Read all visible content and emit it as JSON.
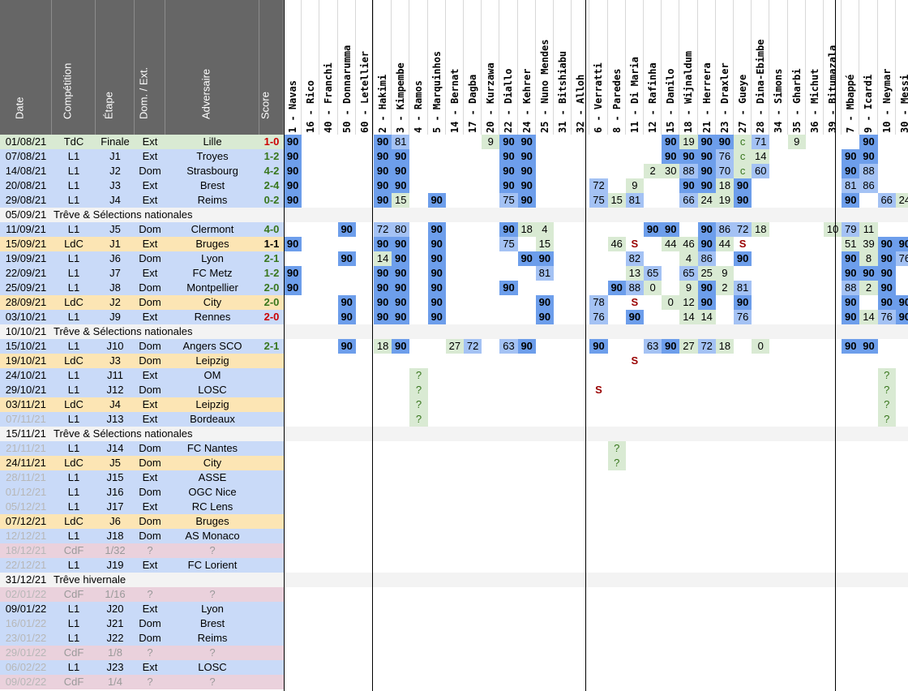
{
  "headers": [
    "Date",
    "Compétition",
    "Étape",
    "Dom. / Ext.",
    "Adversaire",
    "Score"
  ],
  "players": [
    "1 - Navas",
    "16 - Rico",
    "40 - Franchi",
    "50 - Donnarumma",
    "60 - Letellier",
    "2 - Hakimi",
    "3 - Kimpembe",
    "4 - Ramos",
    "5 - Marquinhos",
    "14 - Bernat",
    "17 - Dagba",
    "20 - Kurzawa",
    "22 - Diallo",
    "24 - Kehrer",
    "25 - Nuno Mendes",
    "31 - Bitshiabu",
    "32 - Alloh",
    "6 - Verratti",
    "8 - Paredes",
    "11 - Di Maria",
    "12 - Rafinha",
    "15 - Danilo",
    "18 - Wijnaldum",
    "21 - Herrera",
    "23 - Draxler",
    "27 - Gueye",
    "28 - Dina-Ebimbe",
    "34 - Simons",
    "35 - Gharbi",
    "36 - Michut",
    "39 - Bitumazala",
    "7 - Mbappé",
    "9 - Icardi",
    "10 - Neymar",
    "30 - Messi"
  ],
  "matches": [
    {
      "date": "01/08/21",
      "comp": "TdC",
      "stage": "Finale",
      "venue": "Ext",
      "opp": "Lille",
      "score": "1-0",
      "res": "L",
      "cells": [
        "90",
        "",
        "",
        "",
        "",
        "90",
        "81",
        "",
        "",
        "",
        "",
        "9",
        "90",
        "90",
        "",
        "",
        "",
        "",
        "",
        "",
        "",
        "90",
        "19",
        "90",
        "90",
        "c",
        "71",
        "",
        "9",
        "",
        "",
        "",
        "90",
        "",
        ""
      ]
    },
    {
      "date": "07/08/21",
      "comp": "L1",
      "stage": "J1",
      "venue": "Ext",
      "opp": "Troyes",
      "score": "1-2",
      "res": "W",
      "cells": [
        "90",
        "",
        "",
        "",
        "",
        "90",
        "90",
        "",
        "",
        "",
        "",
        "",
        "90",
        "90",
        "",
        "",
        "",
        "",
        "",
        "",
        "",
        "90",
        "90",
        "90",
        "76",
        "c",
        "14",
        "",
        "",
        "",
        "",
        "90",
        "90",
        "",
        ""
      ]
    },
    {
      "date": "14/08/21",
      "comp": "L1",
      "stage": "J2",
      "venue": "Dom",
      "opp": "Strasbourg",
      "score": "4-2",
      "res": "W",
      "cells": [
        "90",
        "",
        "",
        "",
        "",
        "90",
        "90",
        "",
        "",
        "",
        "",
        "",
        "90",
        "90",
        "",
        "",
        "",
        "",
        "",
        "",
        "2",
        "30",
        "88",
        "90",
        "70",
        "c",
        "60",
        "",
        "",
        "",
        "",
        "90",
        "88",
        "",
        ""
      ]
    },
    {
      "date": "20/08/21",
      "comp": "L1",
      "stage": "J3",
      "venue": "Ext",
      "opp": "Brest",
      "score": "2-4",
      "res": "W",
      "cells": [
        "90",
        "",
        "",
        "",
        "",
        "90",
        "90",
        "",
        "",
        "",
        "",
        "",
        "90",
        "90",
        "",
        "",
        "",
        "72",
        "",
        "9",
        "",
        "",
        "90",
        "90",
        "18",
        "90",
        "",
        "",
        "",
        "",
        "",
        "81",
        "86",
        "",
        ""
      ]
    },
    {
      "date": "29/08/21",
      "comp": "L1",
      "stage": "J4",
      "venue": "Ext",
      "opp": "Reims",
      "score": "0-2",
      "res": "W",
      "cells": [
        "90",
        "",
        "",
        "",
        "",
        "90",
        "15",
        "",
        "90",
        "",
        "",
        "",
        "75",
        "90",
        "",
        "",
        "",
        "75",
        "15",
        "81",
        "",
        "",
        "66",
        "24",
        "19",
        "90",
        "",
        "",
        "",
        "",
        "",
        "90",
        "",
        "66",
        "24"
      ]
    },
    {
      "date": "05/09/21",
      "break": "Trêve & Sélections nationales"
    },
    {
      "date": "11/09/21",
      "comp": "L1",
      "stage": "J5",
      "venue": "Dom",
      "opp": "Clermont",
      "score": "4-0",
      "res": "W",
      "cells": [
        "",
        "",
        "",
        "90",
        "",
        "72",
        "80",
        "",
        "90",
        "",
        "",
        "",
        "90",
        "18",
        "4",
        "",
        "",
        "",
        "",
        "",
        "90",
        "90",
        "",
        "90",
        "86",
        "72",
        "18",
        "",
        "",
        "",
        "10",
        "79",
        "11",
        "",
        ""
      ]
    },
    {
      "date": "15/09/21",
      "comp": "LdC",
      "stage": "J1",
      "venue": "Ext",
      "opp": "Bruges",
      "score": "1-1",
      "res": "D",
      "cells": [
        "90",
        "",
        "",
        "",
        "",
        "90",
        "90",
        "",
        "90",
        "",
        "",
        "",
        "75",
        "",
        "15",
        "",
        "",
        "",
        "46",
        "S",
        "",
        "44",
        "46",
        "90",
        "44",
        "S",
        "",
        "",
        "",
        "",
        "",
        "51",
        "39",
        "90",
        "90"
      ]
    },
    {
      "date": "19/09/21",
      "comp": "L1",
      "stage": "J6",
      "venue": "Dom",
      "opp": "Lyon",
      "score": "2-1",
      "res": "W",
      "cells": [
        "",
        "",
        "",
        "90",
        "",
        "14",
        "90",
        "",
        "90",
        "",
        "",
        "",
        "",
        "90",
        "90",
        "",
        "",
        "",
        "",
        "82",
        "",
        "",
        "4",
        "86",
        "",
        "90",
        "",
        "",
        "",
        "",
        "",
        "90",
        "8",
        "90",
        "76"
      ]
    },
    {
      "date": "22/09/21",
      "comp": "L1",
      "stage": "J7",
      "venue": "Ext",
      "opp": "FC Metz",
      "score": "1-2",
      "res": "W",
      "cells": [
        "90",
        "",
        "",
        "",
        "",
        "90",
        "90",
        "",
        "90",
        "",
        "",
        "",
        "",
        "",
        "81",
        "",
        "",
        "",
        "",
        "13",
        "65",
        "",
        "65",
        "25",
        "9",
        "",
        "",
        "",
        "",
        "",
        "",
        "90",
        "90",
        "90",
        ""
      ]
    },
    {
      "date": "25/09/21",
      "comp": "L1",
      "stage": "J8",
      "venue": "Dom",
      "opp": "Montpellier",
      "score": "2-0",
      "res": "W",
      "cells": [
        "90",
        "",
        "",
        "",
        "",
        "90",
        "90",
        "",
        "90",
        "",
        "",
        "",
        "90",
        "",
        "",
        "",
        "",
        "",
        "90",
        "88",
        "0",
        "",
        "9",
        "90",
        "2",
        "81",
        "",
        "",
        "",
        "",
        "",
        "88",
        "2",
        "90",
        ""
      ]
    },
    {
      "date": "28/09/21",
      "comp": "LdC",
      "stage": "J2",
      "venue": "Dom",
      "opp": "City",
      "score": "2-0",
      "res": "W",
      "cells": [
        "",
        "",
        "",
        "90",
        "",
        "90",
        "90",
        "",
        "90",
        "",
        "",
        "",
        "",
        "",
        "90",
        "",
        "",
        "78",
        "",
        "S",
        "",
        "0",
        "12",
        "90",
        "",
        "90",
        "",
        "",
        "",
        "",
        "",
        "90",
        "",
        "90",
        "90"
      ]
    },
    {
      "date": "03/10/21",
      "comp": "L1",
      "stage": "J9",
      "venue": "Ext",
      "opp": "Rennes",
      "score": "2-0",
      "res": "L",
      "cells": [
        "",
        "",
        "",
        "90",
        "",
        "90",
        "90",
        "",
        "90",
        "",
        "",
        "",
        "",
        "",
        "90",
        "",
        "",
        "76",
        "",
        "90",
        "",
        "",
        "14",
        "14",
        "",
        "76",
        "",
        "",
        "",
        "",
        "",
        "90",
        "14",
        "76",
        "90"
      ]
    },
    {
      "date": "10/10/21",
      "break": "Trêve & Sélections nationales"
    },
    {
      "date": "15/10/21",
      "comp": "L1",
      "stage": "J10",
      "venue": "Dom",
      "opp": "Angers SCO",
      "score": "2-1",
      "res": "W",
      "cells": [
        "",
        "",
        "",
        "90",
        "",
        "18",
        "90",
        "",
        "",
        "27",
        "72",
        "",
        "63",
        "90",
        "",
        "",
        "",
        "90",
        "",
        "",
        "63",
        "90",
        "27",
        "72",
        "18",
        "",
        "0",
        "",
        "",
        "",
        "",
        "90",
        "90",
        "",
        ""
      ]
    },
    {
      "date": "19/10/21",
      "comp": "LdC",
      "stage": "J3",
      "venue": "Dom",
      "opp": "Leipzig",
      "score": "",
      "cells": [
        "",
        "",
        "",
        "",
        "",
        "",
        "",
        "",
        "",
        "",
        "",
        "",
        "",
        "",
        "",
        "",
        "",
        "",
        "",
        "S",
        "",
        "",
        "",
        "",
        "",
        "",
        "",
        "",
        "",
        "",
        "",
        "",
        "",
        "",
        ""
      ]
    },
    {
      "date": "24/10/21",
      "comp": "L1",
      "stage": "J11",
      "venue": "Ext",
      "opp": "OM",
      "score": "",
      "cells": [
        "",
        "",
        "",
        "",
        "",
        "",
        "",
        "?",
        "",
        "",
        "",
        "",
        "",
        "",
        "",
        "",
        "",
        "",
        "",
        "",
        "",
        "",
        "",
        "",
        "",
        "",
        "",
        "",
        "",
        "",
        "",
        "",
        "",
        "?",
        ""
      ]
    },
    {
      "date": "29/10/21",
      "comp": "L1",
      "stage": "J12",
      "venue": "Dom",
      "opp": "LOSC",
      "score": "",
      "cells": [
        "",
        "",
        "",
        "",
        "",
        "",
        "",
        "?",
        "",
        "",
        "",
        "",
        "",
        "",
        "",
        "",
        "",
        "S",
        "",
        "",
        "",
        "",
        "",
        "",
        "",
        "",
        "",
        "",
        "",
        "",
        "",
        "",
        "",
        "?",
        ""
      ]
    },
    {
      "date": "03/11/21",
      "comp": "LdC",
      "stage": "J4",
      "venue": "Ext",
      "opp": "Leipzig",
      "score": "",
      "cells": [
        "",
        "",
        "",
        "",
        "",
        "",
        "",
        "?",
        "",
        "",
        "",
        "",
        "",
        "",
        "",
        "",
        "",
        "",
        "",
        "",
        "",
        "",
        "",
        "",
        "",
        "",
        "",
        "",
        "",
        "",
        "",
        "",
        "",
        "?",
        ""
      ]
    },
    {
      "date": "07/11/21",
      "comp": "L1",
      "stage": "J13",
      "venue": "Ext",
      "opp": "Bordeaux",
      "score": "",
      "cells": [
        "",
        "",
        "",
        "",
        "",
        "",
        "",
        "?",
        "",
        "",
        "",
        "",
        "",
        "",
        "",
        "",
        "",
        "",
        "",
        "",
        "",
        "",
        "",
        "",
        "",
        "",
        "",
        "",
        "",
        "",
        "",
        "",
        "",
        "?",
        ""
      ]
    },
    {
      "date": "15/11/21",
      "break": "Trêve & Sélections nationales"
    },
    {
      "date": "21/11/21",
      "comp": "L1",
      "stage": "J14",
      "venue": "Dom",
      "opp": "FC Nantes",
      "score": "",
      "cells": [
        "",
        "",
        "",
        "",
        "",
        "",
        "",
        "",
        "",
        "",
        "",
        "",
        "",
        "",
        "",
        "",
        "",
        "",
        "?",
        "",
        "",
        "",
        "",
        "",
        "",
        "",
        "",
        "",
        "",
        "",
        "",
        "",
        "",
        "",
        ""
      ]
    },
    {
      "date": "24/11/21",
      "comp": "LdC",
      "stage": "J5",
      "venue": "Dom",
      "opp": "City",
      "score": "",
      "cells": [
        "",
        "",
        "",
        "",
        "",
        "",
        "",
        "",
        "",
        "",
        "",
        "",
        "",
        "",
        "",
        "",
        "",
        "",
        "?",
        "",
        "",
        "",
        "",
        "",
        "",
        "",
        "",
        "",
        "",
        "",
        "",
        "",
        "",
        "",
        ""
      ]
    },
    {
      "date": "28/11/21",
      "comp": "L1",
      "stage": "J15",
      "venue": "Ext",
      "opp": "ASSE",
      "score": "",
      "cells": []
    },
    {
      "date": "01/12/21",
      "comp": "L1",
      "stage": "J16",
      "venue": "Dom",
      "opp": "OGC Nice",
      "score": "",
      "cells": []
    },
    {
      "date": "05/12/21",
      "comp": "L1",
      "stage": "J17",
      "venue": "Ext",
      "opp": "RC Lens",
      "score": "",
      "cells": []
    },
    {
      "date": "07/12/21",
      "comp": "LdC",
      "stage": "J6",
      "venue": "Dom",
      "opp": "Bruges",
      "score": "",
      "cells": []
    },
    {
      "date": "12/12/21",
      "comp": "L1",
      "stage": "J18",
      "venue": "Dom",
      "opp": "AS Monaco",
      "score": "",
      "cells": []
    },
    {
      "date": "18/12/21",
      "comp": "CdF",
      "stage": "1/32",
      "venue": "?",
      "opp": "?",
      "score": "",
      "cells": []
    },
    {
      "date": "22/12/21",
      "comp": "L1",
      "stage": "J19",
      "venue": "Ext",
      "opp": "FC Lorient",
      "score": "",
      "cells": []
    },
    {
      "date": "31/12/21",
      "break": "Trêve hivernale"
    },
    {
      "date": "02/01/22",
      "comp": "CdF",
      "stage": "1/16",
      "venue": "?",
      "opp": "?",
      "score": "",
      "cells": []
    },
    {
      "date": "09/01/22",
      "comp": "L1",
      "stage": "J20",
      "venue": "Ext",
      "opp": "Lyon",
      "score": "",
      "cells": []
    },
    {
      "date": "16/01/22",
      "comp": "L1",
      "stage": "J21",
      "venue": "Dom",
      "opp": "Brest",
      "score": "",
      "cells": []
    },
    {
      "date": "23/01/22",
      "comp": "L1",
      "stage": "J22",
      "venue": "Dom",
      "opp": "Reims",
      "score": "",
      "cells": []
    },
    {
      "date": "29/01/22",
      "comp": "CdF",
      "stage": "1/8",
      "venue": "?",
      "opp": "?",
      "score": "",
      "cells": []
    },
    {
      "date": "06/02/22",
      "comp": "L1",
      "stage": "J23",
      "venue": "Ext",
      "opp": "LOSC",
      "score": "",
      "cells": []
    },
    {
      "date": "09/02/22",
      "comp": "CdF",
      "stage": "1/4",
      "venue": "?",
      "opp": "?",
      "score": "",
      "cells": []
    }
  ],
  "colors": {
    "header_bg": "#666666",
    "l1": "#c9daf8",
    "ldc": "#fce5b4",
    "tdc": "#d9ead3",
    "cdf": "#ead1dc",
    "break": "#f3f3f3",
    "win": "#38761d",
    "loss": "#cc0000",
    "draw": "#000000",
    "full": "#6d9eeb",
    "starter": "#a4c2f4",
    "sub": "#d9ead3",
    "yellow_text": "#ffff00",
    "s_text": "#990000"
  }
}
